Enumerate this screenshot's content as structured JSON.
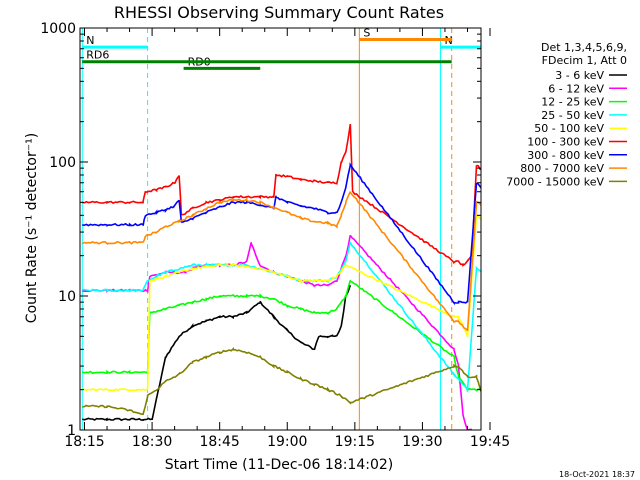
{
  "chart_data": {
    "type": "line",
    "title": "RHESSI Observing Summary Count Rates",
    "xlabel": "Start Time (11-Dec-06 18:14:02)",
    "ylabel": "Count Rate (s⁻¹ detector⁻¹)",
    "x_ticks": [
      "18:15",
      "18:30",
      "18:45",
      "19:00",
      "19:15",
      "19:30",
      "19:45"
    ],
    "y_ticks": [
      "1",
      "10",
      "100",
      "1000"
    ],
    "x_range_min": [
      14.0,
      103.0
    ],
    "y_range": [
      1,
      1000
    ],
    "y_scale": "log",
    "legend_placement": "right",
    "legend_header": [
      "Det 1,3,4,5,6,9,",
      "FDecim 1, Att 0"
    ],
    "footer_date": "18-Oct-2021 18:37",
    "series": [
      {
        "name": "3 - 6 keV",
        "color": "#000000",
        "x": [
          14.5,
          20,
          25,
          28,
          30,
          33,
          36,
          39,
          42,
          45,
          48,
          51,
          54,
          57,
          60,
          63,
          66,
          67,
          69,
          70,
          71,
          72,
          73,
          74
        ],
        "y": [
          1.2,
          1.2,
          1.2,
          1.2,
          1.2,
          3.5,
          5,
          6,
          6.5,
          7,
          7,
          7.5,
          9,
          7,
          5.5,
          4.5,
          4,
          5,
          5,
          5,
          5,
          6,
          10,
          12
        ]
      },
      {
        "name": "6 - 12 keV",
        "color": "#ff00ff",
        "x": [
          14.5,
          20,
          25,
          29,
          29.5,
          33,
          37,
          39,
          42,
          45,
          48,
          51,
          52,
          53,
          54,
          57,
          60,
          63,
          66,
          69,
          71,
          73,
          74,
          97,
          98,
          99,
          100,
          101
        ],
        "y": [
          11,
          11,
          11,
          11,
          14,
          15,
          15,
          16,
          17,
          17,
          17,
          18,
          25,
          20,
          17,
          15,
          14,
          13,
          12,
          12,
          13,
          20,
          28,
          4,
          3,
          1.3,
          1,
          1
        ]
      },
      {
        "name": "12 - 25 keV",
        "color": "#00ff00",
        "x": [
          14.5,
          20,
          25,
          29,
          29.5,
          33,
          36,
          39,
          42,
          45,
          48,
          51,
          54,
          57,
          60,
          63,
          66,
          69,
          71,
          73,
          74,
          97,
          98,
          100,
          102,
          104
        ],
        "y": [
          2.7,
          2.7,
          2.7,
          2.7,
          7.5,
          8,
          8.5,
          9,
          9.5,
          10,
          10,
          10,
          10,
          9.5,
          8.5,
          8,
          7.5,
          7.5,
          8,
          10,
          13,
          3.5,
          2.5,
          2,
          2,
          2
        ]
      },
      {
        "name": "25 - 50 keV",
        "color": "#00ffff",
        "x": [
          14.5,
          20,
          25,
          28,
          29,
          31,
          33,
          36,
          39,
          42,
          45,
          48,
          51,
          54,
          57,
          60,
          63,
          66,
          69,
          71,
          73,
          74,
          97,
          98,
          100,
          102,
          104
        ],
        "y": [
          11,
          11,
          11,
          11,
          13,
          14,
          15,
          16,
          17,
          17,
          17,
          17,
          17,
          16,
          15,
          14,
          13,
          13,
          13,
          14,
          18,
          25,
          2.6,
          2.4,
          2,
          16,
          15
        ]
      },
      {
        "name": "50 - 100 keV",
        "color": "#ffff00",
        "x": [
          14.5,
          25,
          29,
          29.5,
          33,
          36,
          39,
          42,
          45,
          48,
          51,
          54,
          57,
          60,
          63,
          66,
          69,
          71,
          73,
          97,
          98,
          99,
          100,
          102,
          104
        ],
        "y": [
          2,
          2,
          2,
          13,
          14,
          15,
          16,
          16.5,
          17,
          17,
          16.5,
          16,
          15,
          14,
          13,
          13,
          13,
          14,
          17,
          7,
          7,
          6,
          5,
          40,
          35
        ]
      },
      {
        "name": "100 - 300 keV",
        "color": "#ff0000",
        "x": [
          14.5,
          20,
          25,
          28,
          28.5,
          31,
          33,
          35,
          36,
          36.5,
          39,
          42,
          45,
          48,
          51,
          54,
          57,
          57.5,
          60,
          63,
          66,
          69,
          71,
          72,
          73,
          74,
          74.5,
          97,
          98,
          99,
          100,
          101,
          102,
          104
        ],
        "y": [
          50,
          50,
          50,
          50,
          60,
          62,
          65,
          70,
          80,
          40,
          45,
          50,
          52,
          55,
          55,
          55,
          55,
          80,
          78,
          74,
          72,
          70,
          70,
          100,
          120,
          190,
          60,
          18,
          18,
          17,
          18,
          20,
          95,
          82
        ]
      },
      {
        "name": "300 - 800 keV",
        "color": "#0000ff",
        "x": [
          14.5,
          20,
          25,
          28,
          28.5,
          31,
          33,
          35,
          36,
          36.5,
          39,
          42,
          45,
          48,
          51,
          54,
          57,
          57.5,
          60,
          63,
          66,
          69,
          71,
          72,
          73,
          74,
          97,
          98,
          100,
          102,
          104
        ],
        "y": [
          34,
          34,
          34,
          34,
          40,
          42,
          44,
          47,
          52,
          35,
          38,
          42,
          46,
          50,
          50,
          48,
          45,
          55,
          50,
          47,
          45,
          42,
          42,
          50,
          65,
          95,
          9,
          9,
          9,
          70,
          60
        ]
      },
      {
        "name": "800 - 7000 keV",
        "color": "#ff8800",
        "x": [
          14.5,
          20,
          25,
          28,
          28.5,
          31,
          33,
          36,
          39,
          42,
          45,
          48,
          51,
          54,
          57,
          60,
          63,
          66,
          69,
          71,
          72,
          73,
          74,
          97,
          98,
          100,
          102,
          104
        ],
        "y": [
          25,
          25,
          25,
          25,
          28,
          30,
          33,
          36,
          40,
          45,
          50,
          52,
          52,
          50,
          46,
          42,
          38,
          36,
          35,
          33,
          40,
          50,
          60,
          6.5,
          6.5,
          5.5,
          50,
          45
        ]
      },
      {
        "name": "7000 - 15000 keV",
        "color": "#808000",
        "x": [
          14.5,
          20,
          25,
          28,
          29,
          31,
          33,
          36,
          39,
          42,
          45,
          48,
          51,
          54,
          57,
          60,
          63,
          66,
          69,
          72,
          74,
          97,
          98,
          100,
          102,
          104
        ],
        "y": [
          1.5,
          1.5,
          1.4,
          1.3,
          1.8,
          2,
          2.3,
          2.6,
          3.2,
          3.5,
          3.8,
          4,
          3.8,
          3.5,
          3,
          2.7,
          2.4,
          2.2,
          2,
          1.8,
          1.6,
          3,
          3,
          2.5,
          2.5,
          1.5
        ]
      }
    ],
    "annotations": [
      {
        "label": "N",
        "color": "#00ffff",
        "x_start": 14.5,
        "x_end": 29,
        "y": 720
      },
      {
        "label": "N",
        "color": "#00ffff",
        "x_start": 94,
        "x_end": 103,
        "y": 720
      },
      {
        "label": "S",
        "color": "#ff8800",
        "x_start": 76,
        "x_end": 96.5,
        "y": 820
      },
      {
        "label": "RD0",
        "color": "#008000",
        "x_start": 37,
        "x_end": 54,
        "y": 500
      },
      {
        "label": "RD6",
        "color": "#008000",
        "x_start": 14.5,
        "x_end": 96.5,
        "y": 560
      }
    ],
    "vertical_markers": [
      {
        "x": 14.5,
        "color": "#00ffff",
        "style": "solid"
      },
      {
        "x": 29,
        "color": "#00ffff",
        "style": "dashed"
      },
      {
        "x": 76,
        "color": "#ff8800",
        "style": "solid"
      },
      {
        "x": 94,
        "color": "#00ffff",
        "style": "solid"
      },
      {
        "x": 96.5,
        "color": "#ff8800",
        "style": "dashed"
      },
      {
        "x": 103,
        "color": "#00ffff",
        "style": "dashed"
      }
    ]
  }
}
